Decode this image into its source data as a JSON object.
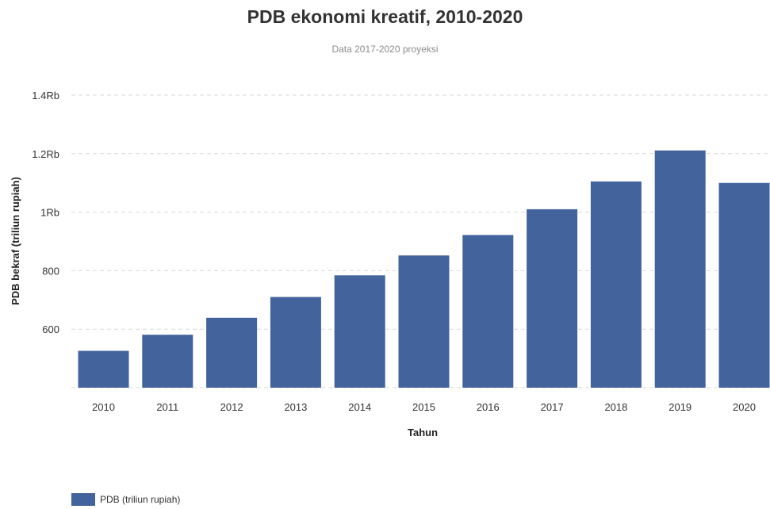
{
  "chart_data": {
    "type": "bar",
    "title": "PDB ekonomi kreatif, 2010-2020",
    "subtitle": "Data 2017-2020 proyeksi",
    "xlabel": "Tahun",
    "ylabel": "PDB bekraf (triliun rupiah)",
    "categories": [
      "2010",
      "2011",
      "2012",
      "2013",
      "2014",
      "2015",
      "2016",
      "2017",
      "2018",
      "2019",
      "2020"
    ],
    "series": [
      {
        "name": "PDB (triliun rupiah)",
        "color": "#43639c",
        "values": [
          526,
          581,
          639,
          710,
          784,
          852,
          922,
          1010,
          1105,
          1211,
          1100
        ]
      }
    ],
    "ylim": [
      400,
      1400
    ],
    "yticks": [
      {
        "value": 600,
        "label": "600"
      },
      {
        "value": 800,
        "label": "800"
      },
      {
        "value": 1000,
        "label": "1Rb"
      },
      {
        "value": 1200,
        "label": "1.2Rb"
      },
      {
        "value": 1400,
        "label": "1.4Rb"
      }
    ],
    "grid": true,
    "legend_position": "bottom-left"
  }
}
